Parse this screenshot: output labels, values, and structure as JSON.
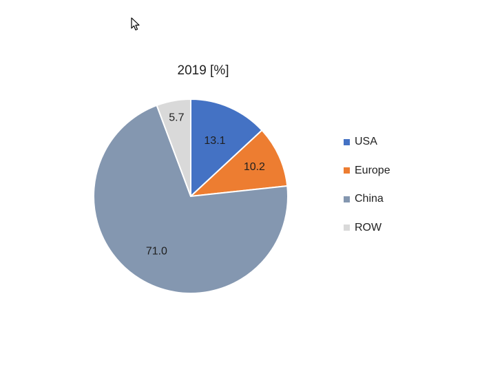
{
  "chart_data": {
    "type": "pie",
    "title": "2019 [%]",
    "categories": [
      "USA",
      "Europe",
      "China",
      "ROW"
    ],
    "values": [
      13.1,
      10.2,
      71.0,
      5.7
    ],
    "value_labels": [
      "13.1",
      "10.2",
      "71.0",
      "5.7"
    ],
    "colors": [
      "#4472C4",
      "#ED7D31",
      "#8497B0",
      "#D9D9D9"
    ],
    "start_angle": "12 o'clock",
    "direction": "clockwise",
    "legend_position": "right"
  },
  "legend": {
    "items": [
      {
        "label": "USA",
        "color": "#4472C4"
      },
      {
        "label": "Europe",
        "color": "#ED7D31"
      },
      {
        "label": "China",
        "color": "#8497B0"
      },
      {
        "label": "ROW",
        "color": "#D9D9D9"
      }
    ]
  },
  "cursor_icon": "mouse-pointer-icon"
}
